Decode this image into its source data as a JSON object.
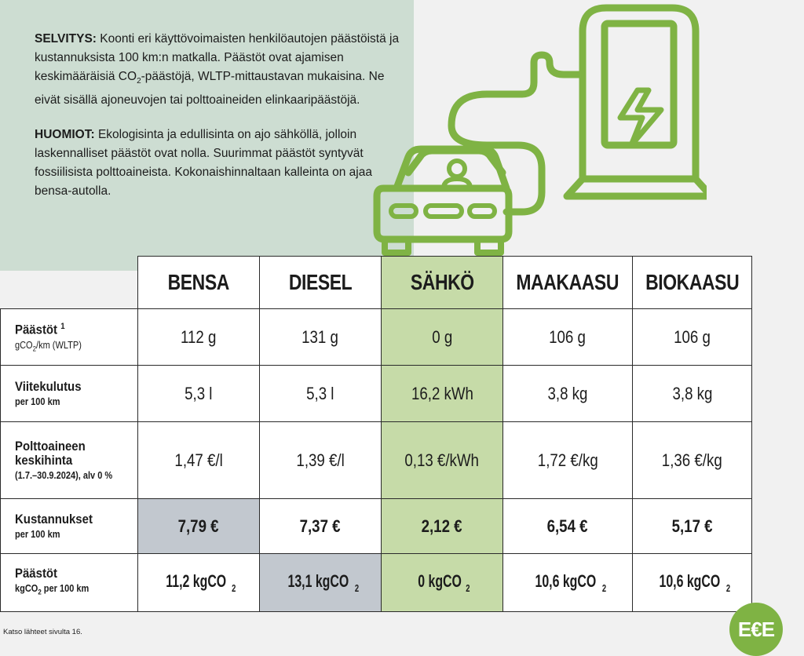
{
  "intro": {
    "selvitys_label": "SELVITYS:",
    "selvitys_text_a": " Koonti eri käyttövoimaisten henkilöautojen päästöistä ja kustannuksista 100 km:n matkalla. Päästöt ovat ajamisen keskimääräisiä CO",
    "selvitys_sub": "2",
    "selvitys_text_b": "-päästöjä, WLTP-mittaustavan mukaisina. Ne eivät sisällä ajoneuvojen tai polttoaineiden elinkaaripäästöjä.",
    "huomiot_label": "HUOMIOT:",
    "huomiot_text": " Ekologisinta ja edullisinta on ajo sähköllä, jolloin laskennalliset päästöt ovat nolla. Suurimmat päästöt syntyvät fossiilisista polttoaineista. Kokonaishinnaltaan kalleinta on ajaa bensa-autolla."
  },
  "illustration": {
    "icons": [
      "charging-station-icon",
      "lightning-bolt-icon",
      "car-icon",
      "driver-icon",
      "charging-cable-icon"
    ],
    "color": "#7fb344"
  },
  "table": {
    "columns": [
      "BENSA",
      "DIESEL",
      "SÄHKÖ",
      "MAAKAASU",
      "BIOKAASU"
    ],
    "highlight_column_color": "#c6dba8",
    "max_value_color": "#c2c8cf",
    "rows": [
      {
        "label": "Päästöt",
        "label_sup": "1",
        "sub_a": "gCO",
        "sub_sub": "2",
        "sub_b": "/km (WLTP)",
        "values": [
          "112 g",
          "131 g",
          "0 g",
          "106 g",
          "106 g"
        ]
      },
      {
        "label": "Viitekulutus",
        "sub": "per 100 km",
        "values": [
          "5,3 l",
          "5,3 l",
          "16,2 kWh",
          "3,8 kg",
          "3,8 kg"
        ]
      },
      {
        "label": "Polttoaineen keskihinta",
        "sub": "(1.7.–30.9.2024), alv 0 %",
        "values": [
          "1,47 €/l",
          "1,39 €/l",
          "0,13 €/kWh",
          "1,72 €/kg",
          "1,36 €/kg"
        ]
      },
      {
        "label": "Kustannukset",
        "sub": "per 100 km",
        "values": [
          "7,79 €",
          "7,37 €",
          "2,12 €",
          "6,54 €",
          "5,17 €"
        ]
      },
      {
        "label": "Päästöt",
        "sub_a": "kgCO",
        "sub_sub": "2",
        "sub_b": " per 100 km",
        "unit_sub": "2",
        "values": [
          "11,2 kgCO",
          "13,1 kgCO",
          "0 kgCO",
          "10,6 kgCO",
          "10,6 kgCO"
        ]
      }
    ]
  },
  "footnote": "Katso lähteet sivulta 16.",
  "logo": {
    "text": "E€E",
    "color": "#7fb344"
  }
}
